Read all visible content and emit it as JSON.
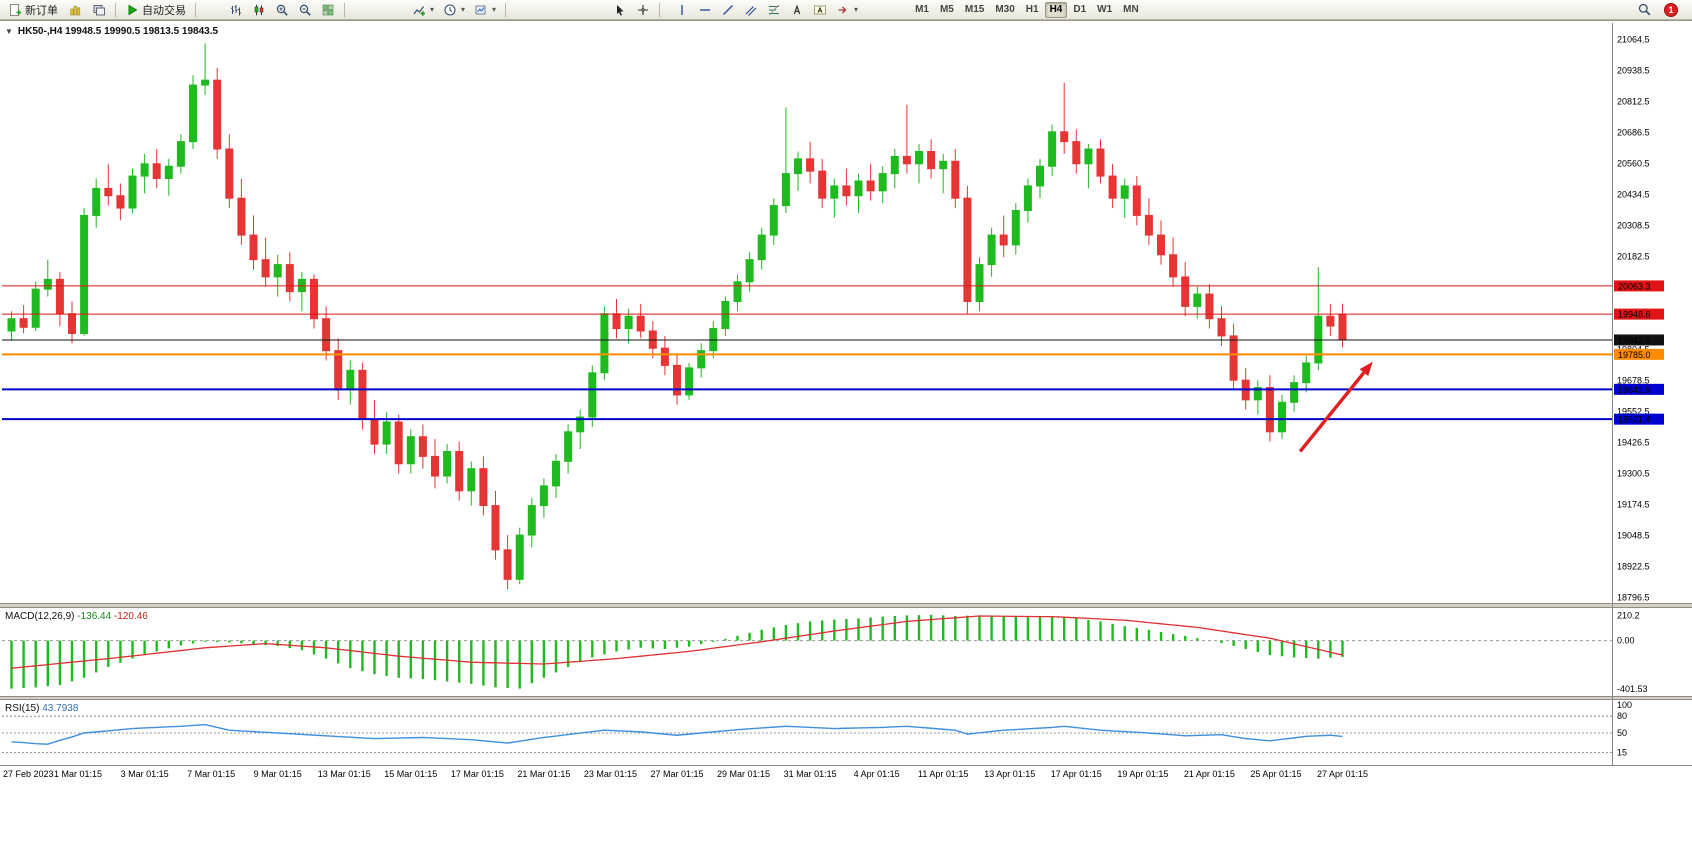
{
  "icons": {
    "collapse": "▼",
    "caret": "▾"
  },
  "toolbar": {
    "new_order_label": "新订单",
    "autotrading_label": "自动交易",
    "timeframes": [
      "M1",
      "M5",
      "M15",
      "M30",
      "H1",
      "H4",
      "D1",
      "W1",
      "MN"
    ],
    "active_timeframe": "H4",
    "notification_count": "1"
  },
  "chart": {
    "info_line": "HK50-,H4  19948.5 19990.5 19813.5 19843.5",
    "macd_label": "MACD(12,26,9)",
    "macd_value": "-136.44",
    "macd_signal_value": "-120.46",
    "rsi_label": "RSI(15)",
    "rsi_value": "43.7938"
  },
  "chart_data": {
    "type": "candlestick",
    "symbol": "HK50-",
    "period": "H4",
    "ohlc_current": {
      "open": 19948.5,
      "high": 19990.5,
      "low": 19813.5,
      "close": 19843.5
    },
    "colors": {
      "up": "#1fba1f",
      "down": "#e63535",
      "macd_histogram": "#1fba1f",
      "macd_signal": "#e03030",
      "rsi_line": "#3f8fe0",
      "arrow": "#e02020"
    },
    "price_axis": {
      "min": 18790,
      "max": 21100,
      "ticks": [
        21064.5,
        20938.5,
        20812.5,
        20686.5,
        20560.5,
        20434.5,
        20308.5,
        20182.5,
        19804.5,
        19678.5,
        19552.5,
        19426.5,
        19300.5,
        19174.5,
        19048.5,
        18922.5,
        18796.5
      ]
    },
    "hlines": [
      {
        "price": 20063.3,
        "label": "20063.3",
        "color": "#e01414",
        "width": 1
      },
      {
        "price": 19948.6,
        "label": "19948.6",
        "color": "#e01414",
        "width": 1
      },
      {
        "price": 19843.5,
        "label": "19843.5",
        "color": "#111111",
        "width": 1
      },
      {
        "price": 19785.0,
        "label": "19785.0",
        "color": "#ff8c00",
        "width": 2
      },
      {
        "price": 19642.6,
        "label": "19642.6",
        "color": "#0000d0",
        "width": 2
      },
      {
        "price": 19521.4,
        "label": "19521.4",
        "color": "#0000d0",
        "width": 2
      }
    ],
    "candles": [
      [
        19880,
        19960,
        19840,
        19930
      ],
      [
        19930,
        19985,
        19870,
        19895
      ],
      [
        19895,
        20080,
        19880,
        20050
      ],
      [
        20050,
        20170,
        20020,
        20090
      ],
      [
        20090,
        20120,
        19900,
        19950
      ],
      [
        19950,
        20000,
        19830,
        19870
      ],
      [
        19870,
        20380,
        19860,
        20350
      ],
      [
        20350,
        20500,
        20300,
        20460
      ],
      [
        20460,
        20560,
        20390,
        20430
      ],
      [
        20430,
        20480,
        20330,
        20380
      ],
      [
        20380,
        20540,
        20360,
        20510
      ],
      [
        20510,
        20600,
        20440,
        20560
      ],
      [
        20560,
        20620,
        20460,
        20500
      ],
      [
        20500,
        20580,
        20430,
        20550
      ],
      [
        20550,
        20680,
        20520,
        20650
      ],
      [
        20650,
        20920,
        20620,
        20880
      ],
      [
        20880,
        21050,
        20840,
        20900
      ],
      [
        20900,
        20950,
        20580,
        20620
      ],
      [
        20620,
        20680,
        20380,
        20420
      ],
      [
        20420,
        20500,
        20230,
        20270
      ],
      [
        20270,
        20350,
        20130,
        20170
      ],
      [
        20170,
        20260,
        20060,
        20100
      ],
      [
        20100,
        20190,
        20020,
        20150
      ],
      [
        20150,
        20200,
        20000,
        20040
      ],
      [
        20040,
        20120,
        19960,
        20090
      ],
      [
        20090,
        20110,
        19890,
        19930
      ],
      [
        19930,
        19980,
        19760,
        19800
      ],
      [
        19800,
        19850,
        19600,
        19640
      ],
      [
        19640,
        19760,
        19580,
        19720
      ],
      [
        19720,
        19750,
        19480,
        19520
      ],
      [
        19520,
        19600,
        19380,
        19420
      ],
      [
        19420,
        19550,
        19380,
        19510
      ],
      [
        19510,
        19540,
        19300,
        19340
      ],
      [
        19340,
        19480,
        19300,
        19450
      ],
      [
        19450,
        19500,
        19320,
        19370
      ],
      [
        19370,
        19440,
        19240,
        19290
      ],
      [
        19290,
        19420,
        19260,
        19390
      ],
      [
        19390,
        19430,
        19190,
        19230
      ],
      [
        19230,
        19350,
        19170,
        19320
      ],
      [
        19320,
        19370,
        19130,
        19170
      ],
      [
        19170,
        19230,
        18950,
        18990
      ],
      [
        18990,
        19050,
        18830,
        18870
      ],
      [
        18870,
        19080,
        18850,
        19050
      ],
      [
        19050,
        19200,
        19000,
        19170
      ],
      [
        19170,
        19280,
        19120,
        19250
      ],
      [
        19250,
        19380,
        19200,
        19350
      ],
      [
        19350,
        19500,
        19300,
        19470
      ],
      [
        19470,
        19560,
        19400,
        19530
      ],
      [
        19530,
        19740,
        19490,
        19710
      ],
      [
        19710,
        19980,
        19680,
        19950
      ],
      [
        19950,
        20010,
        19850,
        19890
      ],
      [
        19890,
        19970,
        19830,
        19940
      ],
      [
        19940,
        19990,
        19850,
        19880
      ],
      [
        19880,
        19920,
        19770,
        19810
      ],
      [
        19810,
        19860,
        19700,
        19740
      ],
      [
        19740,
        19790,
        19580,
        19620
      ],
      [
        19620,
        19750,
        19600,
        19730
      ],
      [
        19730,
        19830,
        19690,
        19800
      ],
      [
        19800,
        19920,
        19770,
        19890
      ],
      [
        19890,
        20020,
        19860,
        20000
      ],
      [
        20000,
        20110,
        19960,
        20080
      ],
      [
        20080,
        20200,
        20040,
        20170
      ],
      [
        20170,
        20300,
        20130,
        20270
      ],
      [
        20270,
        20420,
        20230,
        20390
      ],
      [
        20390,
        20790,
        20360,
        20520
      ],
      [
        20520,
        20610,
        20450,
        20580
      ],
      [
        20580,
        20650,
        20480,
        20530
      ],
      [
        20530,
        20580,
        20380,
        20420
      ],
      [
        20420,
        20500,
        20340,
        20470
      ],
      [
        20470,
        20540,
        20390,
        20430
      ],
      [
        20430,
        20520,
        20360,
        20490
      ],
      [
        20490,
        20560,
        20410,
        20450
      ],
      [
        20450,
        20550,
        20400,
        20520
      ],
      [
        20520,
        20620,
        20460,
        20590
      ],
      [
        20590,
        20800,
        20520,
        20560
      ],
      [
        20560,
        20640,
        20480,
        20610
      ],
      [
        20610,
        20660,
        20500,
        20540
      ],
      [
        20540,
        20600,
        20440,
        20570
      ],
      [
        20570,
        20620,
        20380,
        20420
      ],
      [
        20420,
        20470,
        19950,
        20000
      ],
      [
        20000,
        20180,
        19960,
        20150
      ],
      [
        20150,
        20300,
        20100,
        20270
      ],
      [
        20270,
        20350,
        20180,
        20230
      ],
      [
        20230,
        20400,
        20190,
        20370
      ],
      [
        20370,
        20500,
        20320,
        20470
      ],
      [
        20470,
        20580,
        20420,
        20550
      ],
      [
        20550,
        20720,
        20510,
        20690
      ],
      [
        20690,
        20890,
        20600,
        20650
      ],
      [
        20650,
        20700,
        20520,
        20560
      ],
      [
        20560,
        20640,
        20460,
        20620
      ],
      [
        20620,
        20660,
        20480,
        20510
      ],
      [
        20510,
        20560,
        20380,
        20420
      ],
      [
        20420,
        20500,
        20340,
        20470
      ],
      [
        20470,
        20510,
        20310,
        20350
      ],
      [
        20350,
        20420,
        20230,
        20270
      ],
      [
        20270,
        20330,
        20150,
        20190
      ],
      [
        20190,
        20260,
        20060,
        20100
      ],
      [
        20100,
        20160,
        19940,
        19980
      ],
      [
        19980,
        20060,
        19930,
        20030
      ],
      [
        20030,
        20070,
        19890,
        19930
      ],
      [
        19930,
        19980,
        19820,
        19860
      ],
      [
        19860,
        19910,
        19640,
        19680
      ],
      [
        19680,
        19730,
        19560,
        19600
      ],
      [
        19600,
        19680,
        19540,
        19650
      ],
      [
        19650,
        19700,
        19430,
        19470
      ],
      [
        19470,
        19620,
        19440,
        19590
      ],
      [
        19590,
        19700,
        19550,
        19670
      ],
      [
        19670,
        19780,
        19630,
        19750
      ],
      [
        19750,
        20140,
        19720,
        19940
      ],
      [
        19940,
        19990,
        19860,
        19900
      ],
      [
        19948.5,
        19990.5,
        19813.5,
        19843.5
      ]
    ],
    "x_labels": [
      {
        "bar": 0,
        "text": "27 Feb 2023"
      },
      {
        "bar": 5.5,
        "text": "1 Mar 01:15"
      },
      {
        "bar": 11,
        "text": "3 Mar 01:15"
      },
      {
        "bar": 16.5,
        "text": "7 Mar 01:15"
      },
      {
        "bar": 22,
        "text": "9 Mar 01:15"
      },
      {
        "bar": 27.5,
        "text": "13 Mar 01:15"
      },
      {
        "bar": 33,
        "text": "15 Mar 01:15"
      },
      {
        "bar": 38.5,
        "text": "17 Mar 01:15"
      },
      {
        "bar": 44,
        "text": "21 Mar 01:15"
      },
      {
        "bar": 49.5,
        "text": "23 Mar 01:15"
      },
      {
        "bar": 55,
        "text": "27 Mar 01:15"
      },
      {
        "bar": 60.5,
        "text": "29 Mar 01:15"
      },
      {
        "bar": 66,
        "text": "31 Mar 01:15"
      },
      {
        "bar": 71.5,
        "text": "4 Apr 01:15"
      },
      {
        "bar": 77,
        "text": "11 Apr 01:15"
      },
      {
        "bar": 82.5,
        "text": "13 Apr 01:15"
      },
      {
        "bar": 88,
        "text": "17 Apr 01:15"
      },
      {
        "bar": 93.5,
        "text": "19 Apr 01:15"
      },
      {
        "bar": 99,
        "text": "21 Apr 01:15"
      },
      {
        "bar": 104.5,
        "text": "25 Apr 01:15"
      },
      {
        "bar": 110,
        "text": "27 Apr 01:15"
      }
    ],
    "macd": {
      "axis_ticks": [
        {
          "value": 210.2,
          "label": "210.2"
        },
        {
          "value": 0,
          "label": "0.00"
        },
        {
          "value": -401.53,
          "label": "-401.53"
        }
      ],
      "histogram": [
        -400,
        -395,
        -390,
        -380,
        -370,
        -340,
        -310,
        -265,
        -220,
        -185,
        -150,
        -120,
        -90,
        -65,
        -40,
        -25,
        -10,
        -12,
        -15,
        -22,
        -30,
        -38,
        -45,
        -62,
        -80,
        -115,
        -150,
        -190,
        -230,
        -255,
        -280,
        -295,
        -310,
        -315,
        -320,
        -330,
        -340,
        -350,
        -360,
        -375,
        -390,
        -395,
        -400,
        -355,
        -310,
        -265,
        -220,
        -180,
        -140,
        -115,
        -90,
        -75,
        -60,
        -65,
        -70,
        -60,
        -50,
        -30,
        -10,
        15,
        40,
        65,
        90,
        110,
        130,
        145,
        160,
        168,
        175,
        180,
        185,
        192,
        200,
        205,
        210,
        212,
        215,
        210,
        205,
        208,
        210,
        205,
        200,
        198,
        195,
        198,
        200,
        192,
        185,
        172,
        160,
        140,
        120,
        105,
        90,
        72,
        55,
        38,
        20,
        0,
        -20,
        -45,
        -70,
        -95,
        -120,
        -130,
        -140,
        -145,
        -150,
        -143,
        -136.44
      ],
      "signal": [
        -230,
        -220,
        -210,
        -200,
        -190,
        -180,
        -170,
        -160,
        -150,
        -139,
        -128,
        -117,
        -105,
        -94,
        -83,
        -71,
        -60,
        -53,
        -46,
        -39,
        -32,
        -25,
        -32,
        -39,
        -46,
        -53,
        -60,
        -72,
        -83,
        -95,
        -107,
        -118,
        -130,
        -138,
        -147,
        -155,
        -163,
        -172,
        -180,
        -183,
        -185,
        -188,
        -190,
        -193,
        -195,
        -188,
        -180,
        -173,
        -165,
        -158,
        -150,
        -140,
        -130,
        -120,
        -110,
        -100,
        -90,
        -77,
        -63,
        -50,
        -37,
        -23,
        -10,
        5,
        20,
        35,
        50,
        65,
        80,
        93,
        107,
        120,
        133,
        147,
        160,
        168,
        175,
        183,
        190,
        198,
        205,
        204,
        203,
        202,
        201,
        200,
        200,
        195,
        190,
        185,
        180,
        175,
        170,
        160,
        150,
        140,
        130,
        120,
        110,
        95,
        80,
        65,
        50,
        35,
        20,
        -3,
        -27,
        -50,
        -73,
        -97,
        -120.46
      ]
    },
    "rsi": {
      "axis_ticks": [
        {
          "value": 100,
          "label": "100"
        },
        {
          "value": 80,
          "label": "80"
        },
        {
          "value": 50,
          "label": "50"
        },
        {
          "value": 15,
          "label": "15"
        }
      ],
      "levels": [
        80,
        50,
        15
      ],
      "values": [
        34,
        33,
        31,
        30,
        37,
        43,
        50,
        52,
        54,
        56,
        58,
        59,
        60,
        61,
        62,
        63.5,
        65,
        60,
        55,
        53.7,
        52.5,
        51.2,
        50,
        48.7,
        47.5,
        46.2,
        45,
        43.7,
        42.5,
        41.2,
        40,
        40.5,
        41,
        41.5,
        42,
        41,
        40,
        39,
        38,
        36,
        34,
        32,
        35.3,
        38.7,
        42,
        44.6,
        47.2,
        49.8,
        52.4,
        55,
        54,
        53,
        52,
        50,
        48,
        46,
        48,
        50,
        52,
        54,
        56,
        57.5,
        59,
        60.5,
        62,
        61,
        60,
        59,
        58,
        58.5,
        59,
        59.5,
        60,
        61,
        62,
        60.2,
        58.5,
        56.7,
        55,
        48,
        50.3,
        52.7,
        55,
        56.2,
        57.5,
        58.7,
        60,
        62,
        59.7,
        57.3,
        55,
        53.7,
        52.5,
        51.2,
        50,
        48.3,
        46.7,
        45,
        45.7,
        46.3,
        47,
        43.5,
        40,
        38,
        36,
        38.7,
        41.3,
        44,
        45,
        46,
        43.79
      ]
    },
    "arrow": {
      "from": {
        "bar": 106.5,
        "price": 19390
      },
      "to": {
        "bar": 112.5,
        "price": 19755
      }
    }
  }
}
